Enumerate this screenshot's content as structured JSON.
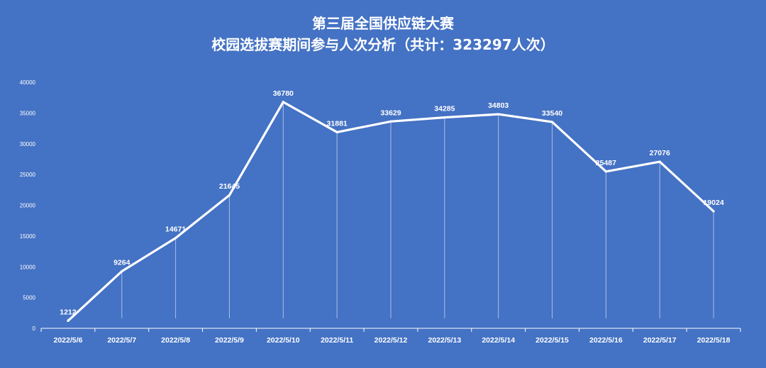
{
  "title_line1": "第三届全国供应链大赛",
  "title_line2": "校园选拔赛期间参与人次分析（共计：323297人次）",
  "chart_data": {
    "type": "line",
    "title": "第三届全国供应链大赛 校园选拔赛期间参与人次分析（共计：323297人次）",
    "categories": [
      "2022/5/6",
      "2022/5/7",
      "2022/5/8",
      "2022/5/9",
      "2022/5/10",
      "2022/5/11",
      "2022/5/12",
      "2022/5/13",
      "2022/5/14",
      "2022/5/15",
      "2022/5/16",
      "2022/5/17",
      "2022/5/18"
    ],
    "values": [
      1212,
      9264,
      14671,
      21645,
      36780,
      31881,
      33629,
      34285,
      34803,
      33540,
      25487,
      27076,
      19024
    ],
    "ylim": [
      0,
      40000
    ],
    "yticks": [
      0,
      5000,
      10000,
      15000,
      20000,
      25000,
      30000,
      35000,
      40000
    ],
    "grid": false,
    "drop_lines": true,
    "data_labels": true,
    "legend": "none"
  },
  "colors": {
    "background": "#4472c4",
    "line": "#ffffff",
    "text": "#ffffff"
  }
}
